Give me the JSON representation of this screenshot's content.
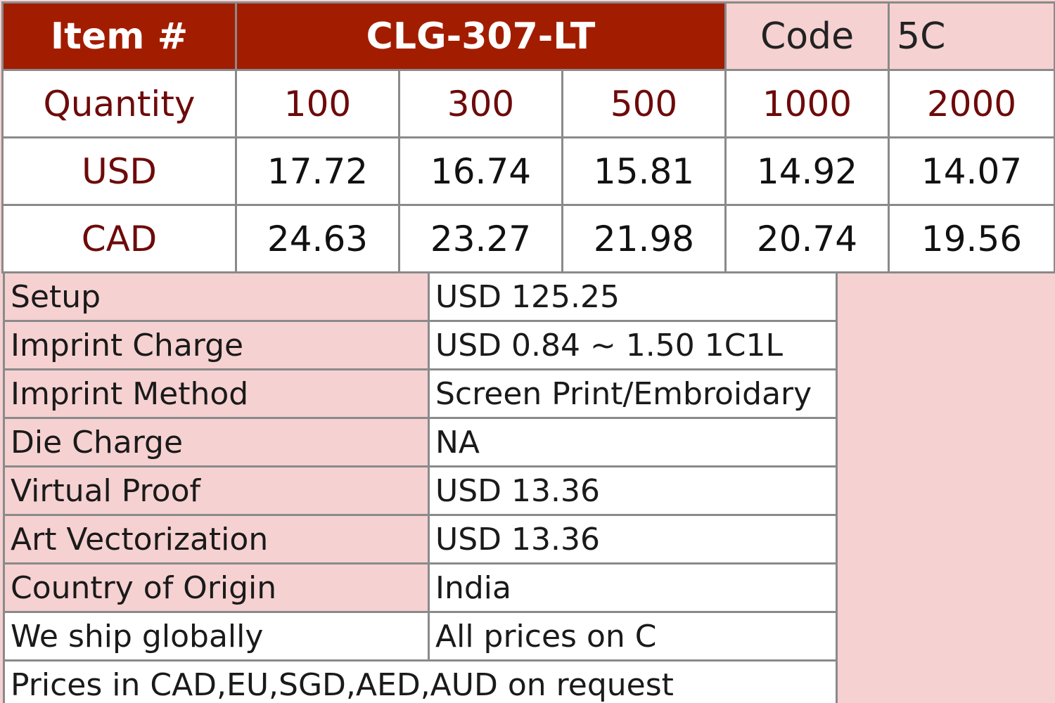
{
  "header": {
    "item_label": "Item #",
    "item_value": "CLG-307-LT",
    "code_label": "Code",
    "code_value": "5C"
  },
  "pricing": {
    "quantity_label": "Quantity",
    "quantities": [
      "100",
      "300",
      "500",
      "1000",
      "2000"
    ],
    "rows": [
      {
        "currency": "USD",
        "prices": [
          "17.72",
          "16.74",
          "15.81",
          "14.92",
          "14.07"
        ]
      },
      {
        "currency": "CAD",
        "prices": [
          "24.63",
          "23.27",
          "21.98",
          "20.74",
          "19.56"
        ]
      }
    ]
  },
  "details": [
    {
      "label": "Setup",
      "value": "USD 125.25"
    },
    {
      "label": "Imprint Charge",
      "value": "USD 0.84 ~ 1.50 1C1L"
    },
    {
      "label": "Imprint Method",
      "value": "Screen Print/Embroidary"
    },
    {
      "label": "Die Charge",
      "value": "NA"
    },
    {
      "label": "Virtual Proof",
      "value": "USD 13.36"
    },
    {
      "label": "Art Vectorization",
      "value": "USD 13.36"
    },
    {
      "label": "Country of Origin",
      "value": "India"
    },
    {
      "label": "We ship globally",
      "value": "All prices on C"
    }
  ],
  "footer_note": "Prices in CAD,EU,SGD,AED,AUD on request",
  "colors": {
    "header_bg": "#a21d00",
    "label_text": "#6e0a0a",
    "pink_bg": "#f6d1d1",
    "border": "#8a8a8a"
  }
}
